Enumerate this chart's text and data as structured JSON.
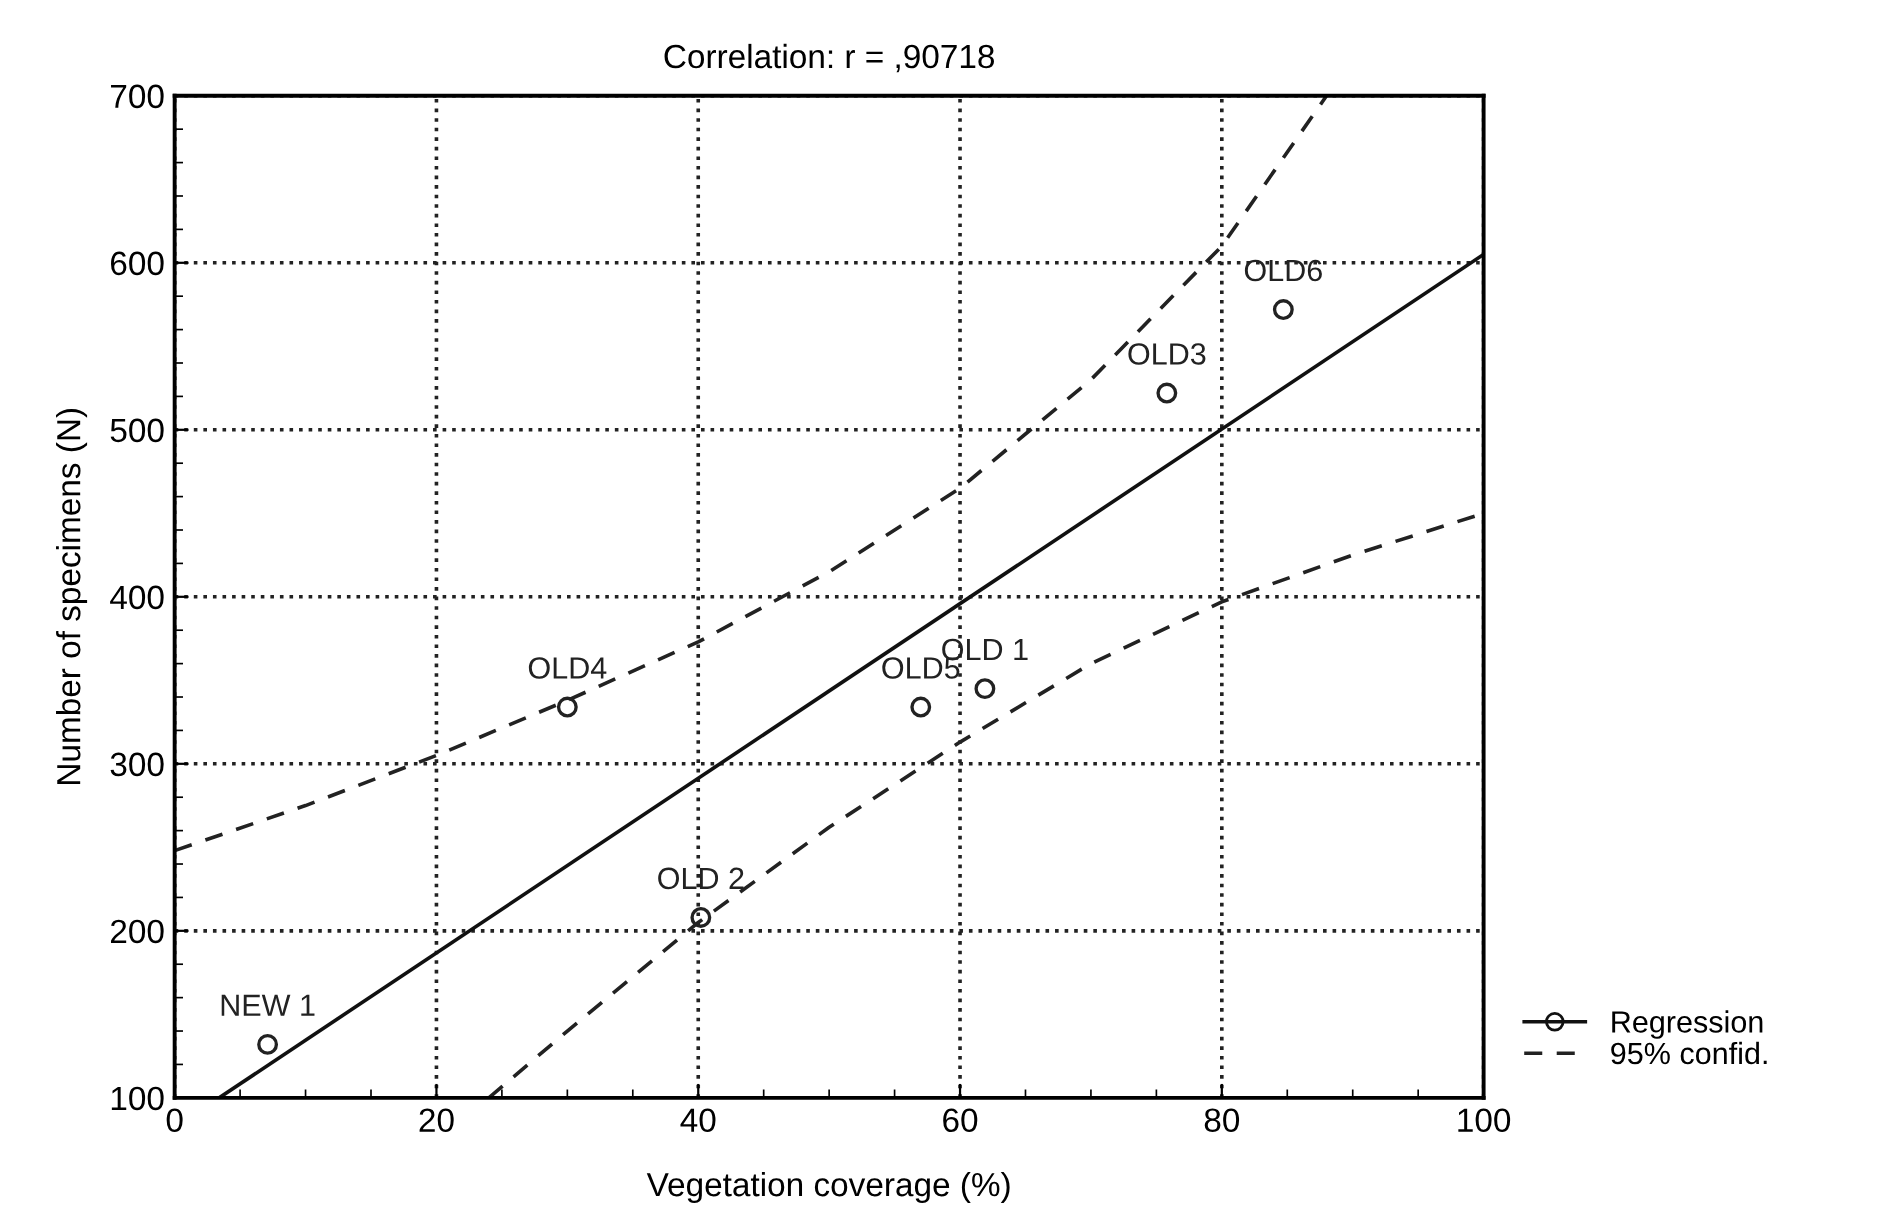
{
  "chart_data": {
    "type": "scatter",
    "title": "Correlation: r = ,90718",
    "xlabel": "Vegetation coverage (%)",
    "ylabel": "Number of specimens (N)",
    "series": [
      {
        "color": "#222222",
        "marker": "circle",
        "x": [
          7.1,
          40.2,
          30,
          57,
          61.9,
          75.8,
          84.7
        ],
        "values": [
          132,
          208,
          334,
          334,
          345,
          522,
          572
        ]
      },
      {
        "type": "line",
        "name": "Regression",
        "color": "#111111",
        "line_style": "solid",
        "x": [
          3.4,
          100
        ],
        "values": [
          100,
          605
        ]
      },
      {
        "type": "line",
        "name": "95% confid.",
        "color": "#222222",
        "line_style": "dashed",
        "x": [
          0,
          10,
          20,
          30,
          40,
          50,
          60,
          70,
          80,
          88
        ],
        "values": [
          248,
          275,
          305,
          338,
          373,
          415,
          465,
          530,
          610,
          700
        ]
      },
      {
        "type": "line",
        "color": "#222222",
        "line_style": "dashed",
        "x": [
          24,
          30,
          40,
          50,
          60,
          70,
          80,
          90,
          100
        ],
        "values": [
          100,
          140,
          205,
          262,
          313,
          360,
          397,
          425,
          450
        ]
      }
    ],
    "annotations": [
      {
        "text": "NEW 1",
        "x": 7.1,
        "y": 132
      },
      {
        "text": "OLD 2",
        "x": 40.2,
        "y": 208
      },
      {
        "text": "OLD4",
        "x": 30,
        "y": 334
      },
      {
        "text": "OLD5",
        "x": 57,
        "y": 334
      },
      {
        "text": "OLD 1",
        "x": 61.9,
        "y": 345
      },
      {
        "text": "OLD3",
        "x": 75.8,
        "y": 522
      },
      {
        "text": "OLD6",
        "x": 84.7,
        "y": 572
      }
    ],
    "xlim": [
      0,
      100
    ],
    "xticks": [
      0,
      20,
      40,
      60,
      80,
      100
    ],
    "ylim": [
      100,
      700
    ],
    "yticks": [
      100,
      200,
      300,
      400,
      500,
      600,
      700
    ],
    "grid": true,
    "legend": "bottom right"
  }
}
